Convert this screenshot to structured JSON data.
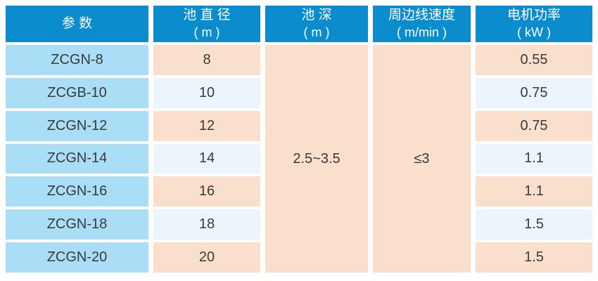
{
  "table": {
    "columns": [
      {
        "label": "参  数",
        "unit": ""
      },
      {
        "label": "池 直 径",
        "unit": "( m )"
      },
      {
        "label": "池  深",
        "unit": "( m )"
      },
      {
        "label": "周边线速度",
        "unit": "( m/min )"
      },
      {
        "label": "电机功率",
        "unit": "( kW )"
      }
    ],
    "rows": [
      {
        "model": "ZCGN-8",
        "diameter": "8",
        "power": "0.55"
      },
      {
        "model": "ZCGB-10",
        "diameter": "10",
        "power": "0.75"
      },
      {
        "model": "ZCGN-12",
        "diameter": "12",
        "power": "0.75"
      },
      {
        "model": "ZCGN-14",
        "diameter": "14",
        "power": "1.1"
      },
      {
        "model": "ZCGN-16",
        "diameter": "16",
        "power": "1.1"
      },
      {
        "model": "ZCGN-18",
        "diameter": "18",
        "power": "1.5"
      },
      {
        "model": "ZCGN-20",
        "diameter": "20",
        "power": "1.5"
      }
    ],
    "merged": {
      "depth": "2.5~3.5",
      "speed": "≤3"
    },
    "colors": {
      "header_bg": "#0b8ccd",
      "header_text": "#ffffff",
      "model_bg": "#a9def6",
      "odd_row_bg": "#fbdfcd",
      "even_row_bg": "#ecf5fb",
      "text": "#3a3a3a",
      "gutter": "#ffffff"
    }
  }
}
